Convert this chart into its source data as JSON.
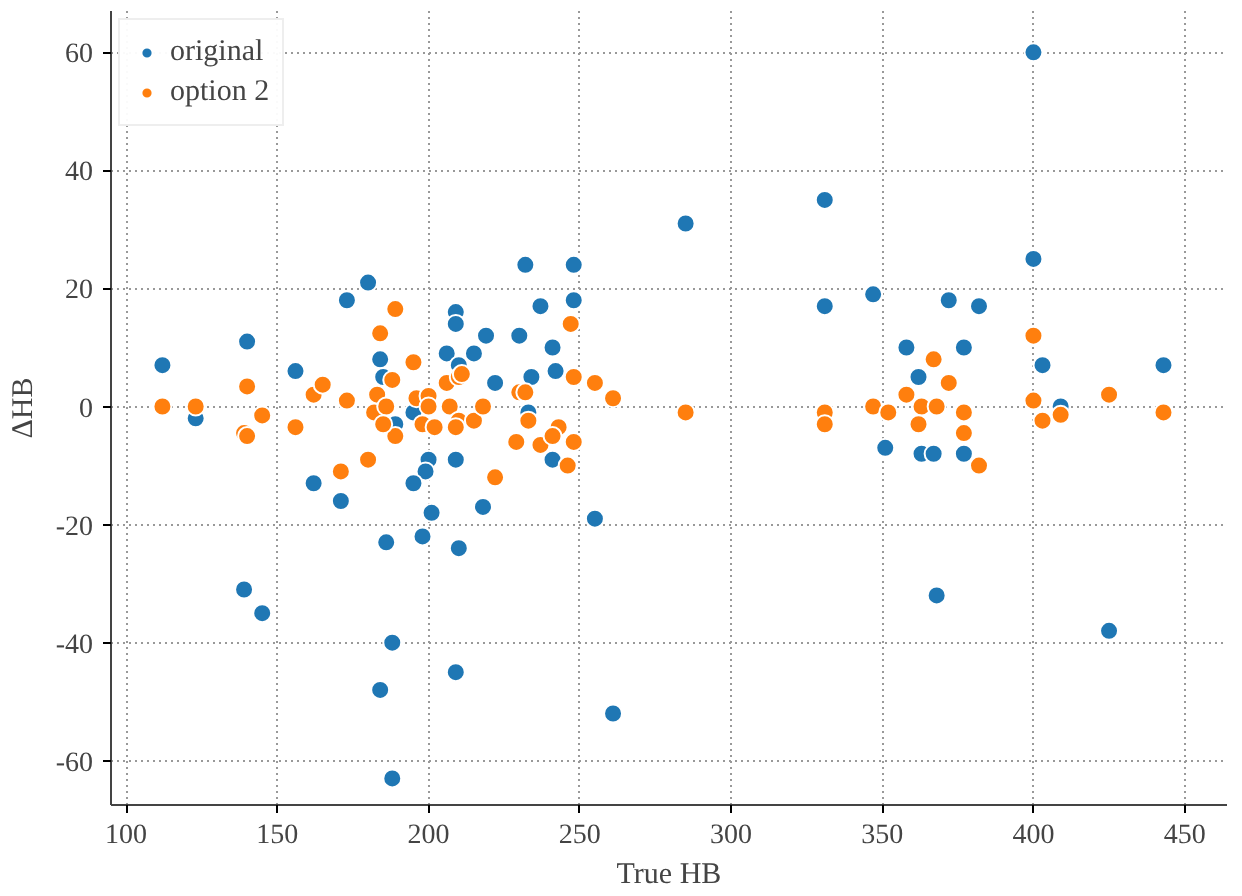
{
  "chart_data": {
    "type": "scatter",
    "xlabel": "True HB",
    "ylabel": "ΔHB",
    "xlim": [
      95,
      464
    ],
    "ylim": [
      -67.5,
      67
    ],
    "xticks": [
      100,
      150,
      200,
      250,
      300,
      350,
      400,
      450
    ],
    "yticks": [
      -60,
      -40,
      -20,
      0,
      20,
      40,
      60
    ],
    "grid": true,
    "legend": "top left",
    "marker": "circle",
    "series": [
      {
        "name": "original",
        "color": "#1f77b4",
        "x": [
          112,
          123,
          140,
          139,
          145,
          162,
          171,
          200,
          209,
          199,
          195,
          201,
          218,
          186,
          198,
          210,
          188,
          184,
          209,
          188,
          255,
          261,
          351,
          285,
          331,
          331,
          347,
          248,
          248,
          400,
          400,
          372,
          382,
          358,
          377,
          362,
          403,
          443,
          409,
          363,
          367,
          377,
          368,
          425,
          173,
          180,
          156,
          184,
          185,
          209,
          209,
          206,
          215,
          219,
          222,
          232,
          237,
          230,
          241,
          242,
          210,
          234,
          233,
          189,
          195,
          241
        ],
        "values": [
          7,
          -2,
          11,
          -31,
          -35,
          -13,
          -16,
          -9,
          -9,
          -11,
          -13,
          -18,
          -17,
          -23,
          -22,
          -24,
          -40,
          -48,
          -45,
          -63,
          -19,
          -52,
          -7,
          31,
          35,
          17,
          19,
          24,
          18,
          60,
          25,
          18,
          17,
          10,
          10,
          5,
          7,
          7,
          0,
          -8,
          -8,
          -8,
          -32,
          -38,
          18,
          21,
          6,
          8,
          5,
          16,
          14,
          9,
          9,
          12,
          4,
          24,
          17,
          12,
          10,
          6,
          7,
          5,
          -1,
          -3,
          -1,
          -9
        ]
      },
      {
        "name": "option 2",
        "color": "#ff7f0e",
        "x": [
          112,
          123,
          139,
          145,
          140,
          140,
          156,
          171,
          180,
          222,
          189,
          189,
          184,
          195,
          162,
          165,
          173,
          188,
          183,
          247,
          255,
          248,
          182,
          186,
          185,
          196,
          200,
          200,
          198,
          202,
          206,
          210,
          211,
          207,
          210,
          209,
          215,
          218,
          230,
          232,
          233,
          229,
          237,
          243,
          241,
          248,
          246,
          261,
          285,
          331,
          331,
          347,
          352,
          400,
          367,
          372,
          358,
          363,
          368,
          377,
          362,
          377,
          382,
          400,
          403,
          409,
          425,
          443
        ],
        "values": [
          0,
          0,
          -4.5,
          -1.5,
          3.4,
          -5,
          -3.5,
          -11,
          -9,
          -12,
          -5,
          16.5,
          12.4,
          7.5,
          2,
          3.7,
          1,
          4.5,
          2,
          14,
          4,
          5,
          -1,
          0,
          -3,
          1.4,
          1.8,
          0,
          -3,
          -3.5,
          4,
          5,
          5.5,
          0,
          -2.4,
          -3.5,
          -2.4,
          0,
          2.4,
          2.4,
          -2.4,
          -6,
          -6.5,
          -3.5,
          -5,
          -6,
          -10,
          1.4,
          -1,
          -1,
          -3,
          0,
          -1,
          12,
          8,
          4,
          2,
          0,
          0,
          -1,
          -3,
          -4.5,
          -10,
          1,
          -2.4,
          -1.4,
          2,
          -1
        ]
      }
    ]
  }
}
